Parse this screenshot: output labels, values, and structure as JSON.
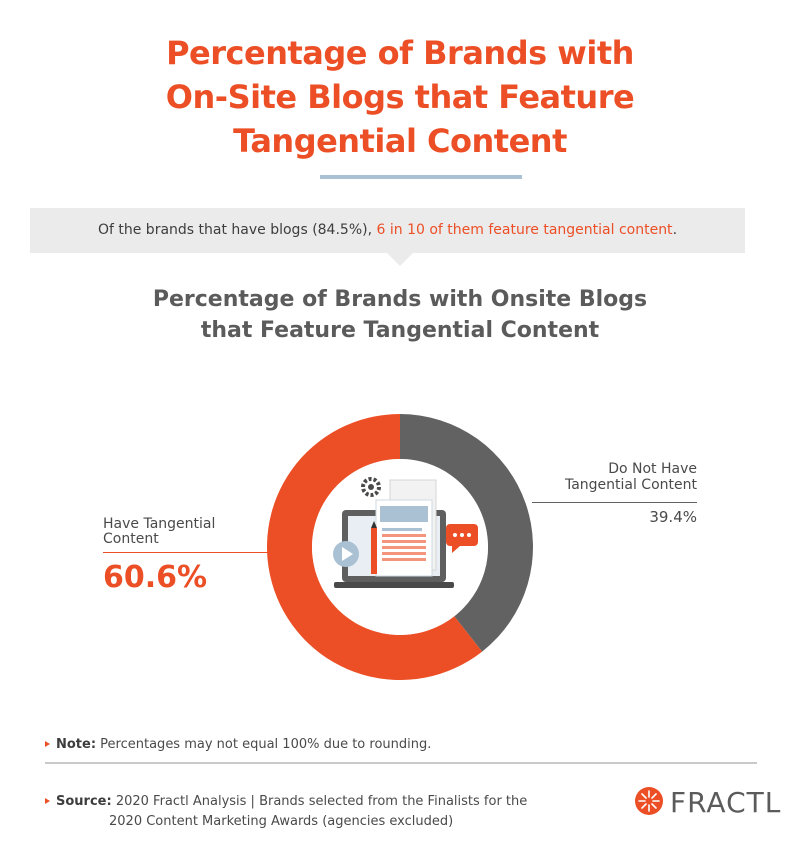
{
  "header": {
    "title_lines": [
      "Percentage of Brands with",
      "On-Site Blogs that Feature",
      "Tangential Content"
    ]
  },
  "banner": {
    "text_plain": "Of the brands that have blogs (84.5%), ",
    "text_highlight": "6 in 10 of them feature tangential content",
    "text_end": "."
  },
  "subtitle_lines": [
    "Percentage of Brands with Onsite Blogs",
    "that Feature Tangential Content"
  ],
  "chart_data": {
    "type": "pie",
    "style": "donut",
    "title": "Percentage of Brands with Onsite Blogs that Feature Tangential Content",
    "slices": [
      {
        "label": "Have Tangential Content",
        "value": 60.6,
        "display": "60.6%",
        "color": "#ec4f26"
      },
      {
        "label": "Do Not Have Tangential Content",
        "value": 39.4,
        "display": "39.4%",
        "color": "#626262"
      }
    ]
  },
  "labels": {
    "have_line1": "Have Tangential",
    "have_line2": "Content",
    "have_pct": "60.6%",
    "not_line1": "Do Not Have",
    "not_line2": "Tangential Content",
    "not_pct": "39.4%"
  },
  "footer": {
    "note_label": "Note:",
    "note_text": " Percentages may not equal 100% due to rounding.",
    "source_label": "Source:",
    "source_line1": " 2020 Fractl Analysis | Brands selected from the Finalists for the",
    "source_line2": "2020 Content Marketing Awards (agencies excluded)"
  },
  "brand": {
    "logo_text": "FRACTL",
    "logo_icon": "fractl-burst-icon"
  },
  "colors": {
    "accent": "#ec4f26",
    "dark_gray": "#626262",
    "rule_blue": "#a9c1d3"
  }
}
